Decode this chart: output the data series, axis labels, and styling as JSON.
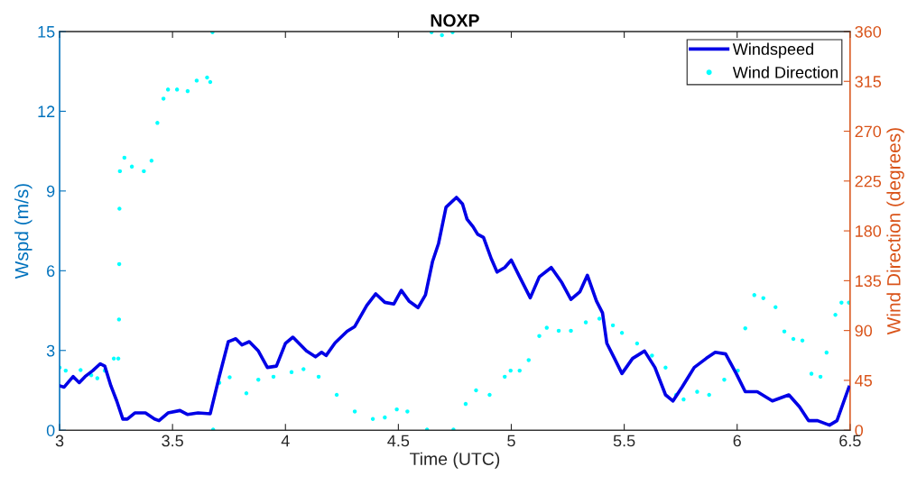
{
  "chart_data": {
    "type": "line",
    "title": "NOXP",
    "xlabel": "Time (UTC)",
    "ylabel": "Wspd (m/s)",
    "y2label": "Wind Direction (degrees)",
    "xlim": [
      3,
      6.5
    ],
    "xticks": [
      3,
      3.5,
      4,
      4.5,
      5,
      5.5,
      6,
      6.5
    ],
    "ylim": [
      0,
      15
    ],
    "yticks": [
      0,
      3,
      6,
      9,
      12,
      15
    ],
    "y2lim": [
      0,
      360
    ],
    "y2ticks": [
      0,
      45,
      90,
      135,
      180,
      225,
      270,
      315,
      360
    ],
    "grid": false,
    "legend": "top right",
    "series": [
      {
        "name": "Windspeed",
        "color": "#0000e6",
        "marker": "none",
        "line_style": "solid",
        "x": [
          3.0,
          3.02,
          3.06,
          3.087,
          3.113,
          3.147,
          3.18,
          3.2,
          3.227,
          3.253,
          3.28,
          3.3,
          3.333,
          3.38,
          3.42,
          3.44,
          3.48,
          3.533,
          3.567,
          3.613,
          3.667,
          3.707,
          3.747,
          3.78,
          3.807,
          3.84,
          3.88,
          3.92,
          3.96,
          4.0,
          4.033,
          4.093,
          4.133,
          4.16,
          4.18,
          4.22,
          4.273,
          4.307,
          4.36,
          4.4,
          4.44,
          4.48,
          4.513,
          4.547,
          4.587,
          4.62,
          4.651,
          4.678,
          4.711,
          4.757,
          4.784,
          4.804,
          4.831,
          4.851,
          4.877,
          4.911,
          4.937,
          4.971,
          5.0,
          5.037,
          5.084,
          5.124,
          5.177,
          5.224,
          5.264,
          5.304,
          5.337,
          5.377,
          5.404,
          5.423,
          5.457,
          5.49,
          5.537,
          5.59,
          5.636,
          5.683,
          5.716,
          5.756,
          5.81,
          5.863,
          5.903,
          5.949,
          5.996,
          6.036,
          6.089,
          6.156,
          6.229,
          6.276,
          6.316,
          6.356,
          6.409,
          6.442,
          6.495
        ],
        "values": [
          1.67,
          1.62,
          2.02,
          1.79,
          2.02,
          2.24,
          2.5,
          2.41,
          1.67,
          1.1,
          0.42,
          0.42,
          0.65,
          0.65,
          0.42,
          0.36,
          0.65,
          0.74,
          0.59,
          0.65,
          0.62,
          2.02,
          3.33,
          3.44,
          3.21,
          3.33,
          2.98,
          2.36,
          2.41,
          3.27,
          3.5,
          2.98,
          2.76,
          2.93,
          2.81,
          3.29,
          3.72,
          3.9,
          4.69,
          5.13,
          4.81,
          4.75,
          5.26,
          4.86,
          4.61,
          5.09,
          6.34,
          7.03,
          8.39,
          8.76,
          8.51,
          7.94,
          7.65,
          7.37,
          7.25,
          6.46,
          5.95,
          6.12,
          6.4,
          5.77,
          4.98,
          5.77,
          6.12,
          5.55,
          4.92,
          5.21,
          5.83,
          4.86,
          4.41,
          3.27,
          2.7,
          2.13,
          2.7,
          2.98,
          2.36,
          1.33,
          1.1,
          1.62,
          2.36,
          2.7,
          2.93,
          2.87,
          2.13,
          1.45,
          1.45,
          1.1,
          1.33,
          0.88,
          0.36,
          0.36,
          0.19,
          0.36,
          1.62
        ]
      },
      {
        "name": "Wind Direction",
        "type": "scatter",
        "axis": "y2",
        "color": "#00ffff",
        "marker": "circle",
        "x": [
          3.0,
          3.027,
          3.093,
          3.14,
          3.167,
          3.2,
          3.24,
          3.26,
          3.263,
          3.264,
          3.265,
          3.267,
          3.287,
          3.32,
          3.373,
          3.407,
          3.433,
          3.46,
          3.48,
          3.52,
          3.567,
          3.607,
          3.653,
          3.667,
          3.677,
          3.68,
          3.707,
          3.753,
          3.827,
          3.88,
          3.947,
          4.027,
          4.08,
          4.147,
          4.227,
          4.307,
          4.387,
          4.44,
          4.493,
          4.54,
          4.627,
          4.647,
          4.693,
          4.74,
          4.744,
          4.798,
          4.844,
          4.904,
          4.971,
          4.997,
          5.037,
          5.077,
          5.124,
          5.157,
          5.21,
          5.264,
          5.33,
          5.39,
          5.45,
          5.49,
          5.557,
          5.623,
          5.683,
          5.73,
          5.763,
          5.823,
          5.876,
          5.943,
          6.003,
          6.036,
          6.076,
          6.116,
          6.17,
          6.209,
          6.249,
          6.289,
          6.329,
          6.369,
          6.396,
          6.435,
          6.462,
          6.495
        ],
        "values": [
          56.5,
          53.8,
          54.3,
          49.7,
          46.9,
          53.8,
          64.7,
          64.7,
          100,
          150,
          200,
          233.9,
          246.1,
          238,
          233.9,
          243.4,
          277.5,
          299.4,
          307.6,
          307.6,
          306.2,
          315.7,
          318.5,
          314.4,
          359.4,
          0.5,
          42.8,
          47.8,
          33.3,
          45.6,
          48.3,
          52.4,
          55.1,
          48.3,
          31.9,
          16.9,
          10.1,
          11.5,
          18.8,
          16.9,
          0.5,
          359.4,
          356.7,
          359.4,
          0.5,
          23.7,
          36,
          31.9,
          48.3,
          53.8,
          53.8,
          63.3,
          85.1,
          92.5,
          89.8,
          89.8,
          97.4,
          100.7,
          94.7,
          87.9,
          78.3,
          67.4,
          56.5,
          31.9,
          27.8,
          34.7,
          31.9,
          45.6,
          53.8,
          92,
          122,
          119.3,
          111.1,
          89.2,
          82.4,
          81,
          51,
          48.3,
          70.1,
          104.2,
          115.2,
          115.2
        ]
      }
    ]
  }
}
